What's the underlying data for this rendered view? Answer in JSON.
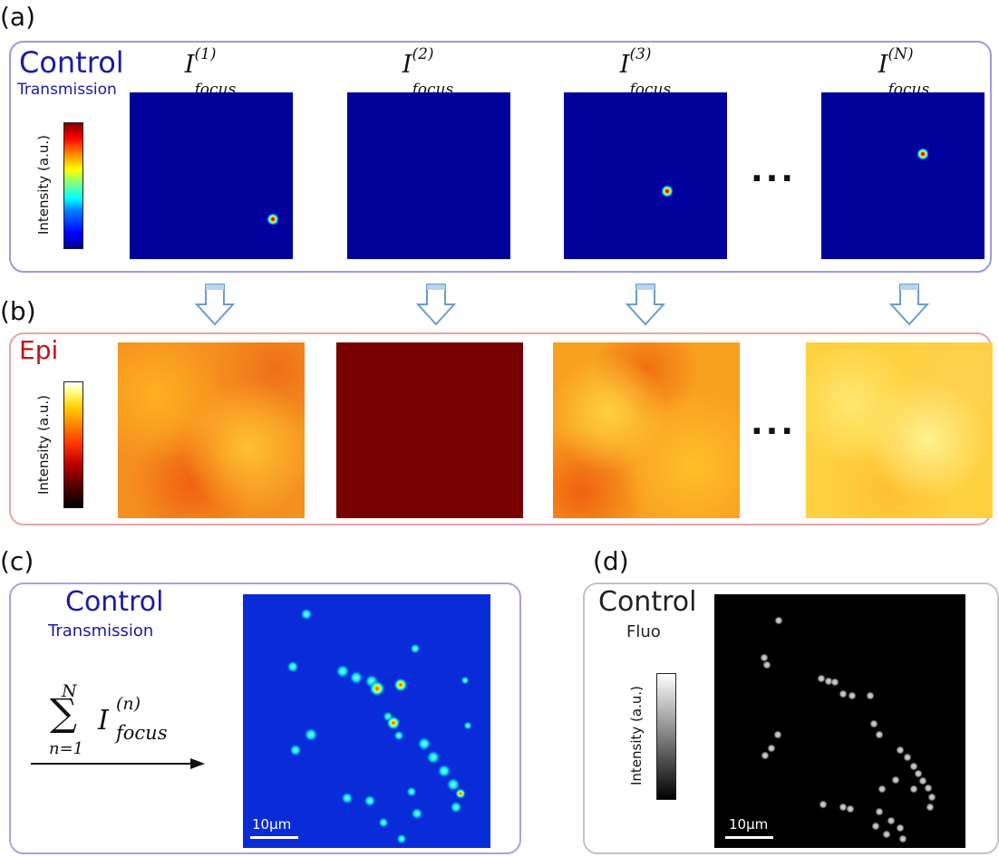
{
  "panels": {
    "a": {
      "letter": "(a)",
      "title": "Control",
      "subtitle": "Transmission",
      "colorbar_label": "Intensity (a.u.)",
      "focus_base": "I",
      "focus_sub": "focus",
      "focus_indices": [
        "(1)",
        "(2)",
        "(3)",
        "(N)"
      ],
      "ellipsis": "..."
    },
    "b": {
      "letter": "(b)",
      "title": "Epi",
      "colorbar_label": "Intensity (a.u.)",
      "ellipsis": "..."
    },
    "c": {
      "letter": "(c)",
      "title": "Control",
      "subtitle": "Transmission",
      "sum_upper": "N",
      "sum_symbol": "∑",
      "sum_lower": "n=1",
      "sum_term_base": "I",
      "sum_term_sup": "(n)",
      "sum_term_sub": "focus",
      "scalebar": "10µm"
    },
    "d": {
      "letter": "(d)",
      "title": "Control",
      "subtitle": "Fluo",
      "colorbar_label": "Intensity (a.u.)",
      "scalebar": "10µm"
    }
  },
  "colors": {
    "control_box": "#9a9ae0",
    "epi_box": "#e6a5a8",
    "fluo_box": "#c3c3c3",
    "control_title": "#1a1aa8",
    "epi_title": "#c21212",
    "arrow_fill": "#b9d3ec",
    "arrow_stroke": "#6a9ccf"
  },
  "icons": [
    "down-arrow-icon",
    "right-arrow-icon"
  ]
}
